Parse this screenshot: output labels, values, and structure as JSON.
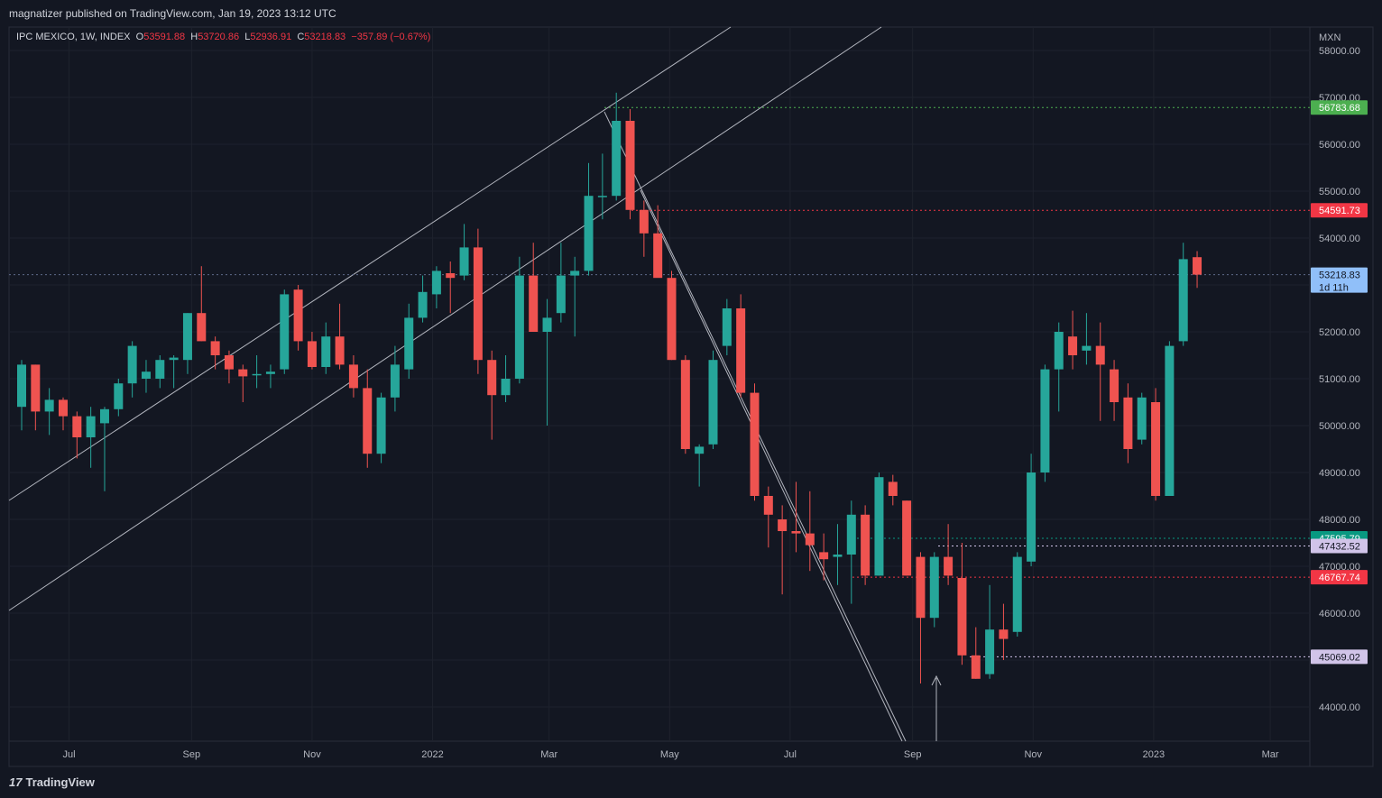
{
  "header": {
    "published": "magnatizer published on TradingView.com, Jan 19, 2023 13:12 UTC"
  },
  "legend": {
    "symbol": "IPC MEXICO, 1W, INDEX",
    "o_label": "O",
    "o_value": "53591.88",
    "h_label": "H",
    "h_value": "53720.86",
    "l_label": "L",
    "l_value": "52936.91",
    "c_label": "C",
    "c_value": "53218.83",
    "change": "−357.89 (−0.67%)"
  },
  "footer": {
    "brand": "TradingView",
    "brand_mark": "17"
  },
  "colors": {
    "up": "#26a69a",
    "down": "#ef5350",
    "background": "#131722",
    "grid": "#1e222d",
    "text": "#b2b5be",
    "trendline": "#b2b5be"
  },
  "chart_data": {
    "type": "candlestick",
    "currency": "MXN",
    "ylim": [
      43000,
      59000
    ],
    "y_ticks": [
      44000,
      45000,
      46000,
      47000,
      48000,
      49000,
      50000,
      51000,
      52000,
      53000,
      54000,
      55000,
      56000,
      57000,
      58000
    ],
    "y_tick_labels": [
      "44000.00",
      "45000.00",
      "46000.00",
      "47000.00",
      "48000.00",
      "49000.00",
      "50000.00",
      "51000.00",
      "52000.00",
      "53000.00",
      "54000.00",
      "55000.00",
      "56000.00",
      "57000.00",
      "58000.00"
    ],
    "x_ticks": [
      {
        "label": "Jul",
        "date": "2021-07-01"
      },
      {
        "label": "Sep",
        "date": "2021-09-01"
      },
      {
        "label": "Nov",
        "date": "2021-11-01"
      },
      {
        "label": "2022",
        "date": "2022-01-01"
      },
      {
        "label": "Mar",
        "date": "2022-03-01"
      },
      {
        "label": "May",
        "date": "2022-05-01"
      },
      {
        "label": "Jul",
        "date": "2022-07-01"
      },
      {
        "label": "Sep",
        "date": "2022-09-01"
      },
      {
        "label": "Nov",
        "date": "2022-11-01"
      },
      {
        "label": "2023",
        "date": "2023-01-01"
      },
      {
        "label": "Mar",
        "date": "2023-03-01"
      }
    ],
    "first_week": "2021-06-07",
    "last_date": "2023-03-20",
    "candles": [
      {
        "o": 50400,
        "h": 51400,
        "l": 49900,
        "c": 51300
      },
      {
        "o": 51300,
        "h": 51300,
        "l": 49900,
        "c": 50300
      },
      {
        "o": 50300,
        "h": 50800,
        "l": 49800,
        "c": 50550
      },
      {
        "o": 50550,
        "h": 50600,
        "l": 49900,
        "c": 50200
      },
      {
        "o": 50200,
        "h": 50300,
        "l": 49300,
        "c": 49750
      },
      {
        "o": 49750,
        "h": 50400,
        "l": 49100,
        "c": 50200
      },
      {
        "o": 50050,
        "h": 50400,
        "l": 48600,
        "c": 50350
      },
      {
        "o": 50350,
        "h": 51000,
        "l": 50200,
        "c": 50900
      },
      {
        "o": 50900,
        "h": 51800,
        "l": 50600,
        "c": 51700
      },
      {
        "o": 51000,
        "h": 51400,
        "l": 50700,
        "c": 51150
      },
      {
        "o": 51000,
        "h": 51500,
        "l": 50800,
        "c": 51400
      },
      {
        "o": 51400,
        "h": 51500,
        "l": 50800,
        "c": 51450
      },
      {
        "o": 51400,
        "h": 52400,
        "l": 51100,
        "c": 52400
      },
      {
        "o": 52400,
        "h": 53400,
        "l": 51800,
        "c": 51800
      },
      {
        "o": 51800,
        "h": 51900,
        "l": 51200,
        "c": 51500
      },
      {
        "o": 51500,
        "h": 51600,
        "l": 50900,
        "c": 51200
      },
      {
        "o": 51200,
        "h": 51300,
        "l": 50500,
        "c": 51050
      },
      {
        "o": 51100,
        "h": 51500,
        "l": 50800,
        "c": 51100
      },
      {
        "o": 51100,
        "h": 51300,
        "l": 50800,
        "c": 51150
      },
      {
        "o": 51200,
        "h": 52900,
        "l": 51100,
        "c": 52800
      },
      {
        "o": 52900,
        "h": 53000,
        "l": 51600,
        "c": 51800
      },
      {
        "o": 51800,
        "h": 52000,
        "l": 51200,
        "c": 51250
      },
      {
        "o": 51250,
        "h": 52200,
        "l": 51100,
        "c": 51900
      },
      {
        "o": 51900,
        "h": 52600,
        "l": 51200,
        "c": 51300
      },
      {
        "o": 51300,
        "h": 51500,
        "l": 50600,
        "c": 50800
      },
      {
        "o": 50800,
        "h": 51200,
        "l": 49100,
        "c": 49400
      },
      {
        "o": 49400,
        "h": 50700,
        "l": 49200,
        "c": 50600
      },
      {
        "o": 50600,
        "h": 51700,
        "l": 50300,
        "c": 51300
      },
      {
        "o": 51200,
        "h": 52600,
        "l": 51000,
        "c": 52300
      },
      {
        "o": 52300,
        "h": 53200,
        "l": 52200,
        "c": 52850
      },
      {
        "o": 52800,
        "h": 53400,
        "l": 52500,
        "c": 53300
      },
      {
        "o": 53250,
        "h": 53500,
        "l": 52400,
        "c": 53150
      },
      {
        "o": 53200,
        "h": 54300,
        "l": 53100,
        "c": 53800
      },
      {
        "o": 53800,
        "h": 54200,
        "l": 51100,
        "c": 51400
      },
      {
        "o": 51400,
        "h": 51600,
        "l": 49700,
        "c": 50650
      },
      {
        "o": 50650,
        "h": 51500,
        "l": 50500,
        "c": 51000
      },
      {
        "o": 51000,
        "h": 53600,
        "l": 50900,
        "c": 53200
      },
      {
        "o": 53200,
        "h": 53900,
        "l": 52000,
        "c": 52000
      },
      {
        "o": 52000,
        "h": 52700,
        "l": 50000,
        "c": 52300
      },
      {
        "o": 52400,
        "h": 53900,
        "l": 52200,
        "c": 53200
      },
      {
        "o": 53200,
        "h": 53600,
        "l": 51900,
        "c": 53300
      },
      {
        "o": 53300,
        "h": 55600,
        "l": 53200,
        "c": 54900
      },
      {
        "o": 54900,
        "h": 55800,
        "l": 54400,
        "c": 54900
      },
      {
        "o": 54900,
        "h": 57100,
        "l": 54800,
        "c": 56500
      },
      {
        "o": 56500,
        "h": 56750,
        "l": 54400,
        "c": 54600
      },
      {
        "o": 54600,
        "h": 54800,
        "l": 53600,
        "c": 54100
      },
      {
        "o": 54100,
        "h": 54700,
        "l": 53200,
        "c": 53150
      },
      {
        "o": 53150,
        "h": 53300,
        "l": 51400,
        "c": 51400
      },
      {
        "o": 51400,
        "h": 51500,
        "l": 49400,
        "c": 49500
      },
      {
        "o": 49400,
        "h": 49600,
        "l": 48700,
        "c": 49550
      },
      {
        "o": 49600,
        "h": 51600,
        "l": 49500,
        "c": 51400
      },
      {
        "o": 51700,
        "h": 52700,
        "l": 51500,
        "c": 52500
      },
      {
        "o": 52500,
        "h": 52800,
        "l": 50600,
        "c": 50700
      },
      {
        "o": 50700,
        "h": 50900,
        "l": 48400,
        "c": 48500
      },
      {
        "o": 48500,
        "h": 48700,
        "l": 47400,
        "c": 48100
      },
      {
        "o": 48000,
        "h": 48300,
        "l": 46400,
        "c": 47750
      },
      {
        "o": 47750,
        "h": 48800,
        "l": 47300,
        "c": 47700
      },
      {
        "o": 47700,
        "h": 48600,
        "l": 46900,
        "c": 47450
      },
      {
        "o": 47300,
        "h": 47700,
        "l": 46700,
        "c": 47150
      },
      {
        "o": 47200,
        "h": 47900,
        "l": 46600,
        "c": 47250
      },
      {
        "o": 47250,
        "h": 48400,
        "l": 46200,
        "c": 48100
      },
      {
        "o": 48100,
        "h": 48300,
        "l": 46600,
        "c": 46800
      },
      {
        "o": 46800,
        "h": 49000,
        "l": 46800,
        "c": 48900
      },
      {
        "o": 48800,
        "h": 48950,
        "l": 48300,
        "c": 48500
      },
      {
        "o": 48400,
        "h": 48400,
        "l": 46800,
        "c": 46800
      },
      {
        "o": 47200,
        "h": 47300,
        "l": 44500,
        "c": 45900
      },
      {
        "o": 45900,
        "h": 47300,
        "l": 45700,
        "c": 47200
      },
      {
        "o": 47200,
        "h": 47900,
        "l": 46600,
        "c": 46800
      },
      {
        "o": 46750,
        "h": 47500,
        "l": 44900,
        "c": 45100
      },
      {
        "o": 45100,
        "h": 45700,
        "l": 44600,
        "c": 44600
      },
      {
        "o": 44700,
        "h": 46600,
        "l": 44600,
        "c": 45650
      },
      {
        "o": 45650,
        "h": 46200,
        "l": 45000,
        "c": 45450
      },
      {
        "o": 45600,
        "h": 47300,
        "l": 45500,
        "c": 47200
      },
      {
        "o": 47100,
        "h": 49400,
        "l": 47000,
        "c": 49000
      },
      {
        "o": 49000,
        "h": 51300,
        "l": 48800,
        "c": 51200
      },
      {
        "o": 51200,
        "h": 52200,
        "l": 50300,
        "c": 52000
      },
      {
        "o": 51900,
        "h": 52450,
        "l": 51200,
        "c": 51500
      },
      {
        "o": 51600,
        "h": 52400,
        "l": 51300,
        "c": 51700
      },
      {
        "o": 51700,
        "h": 52200,
        "l": 50100,
        "c": 51300
      },
      {
        "o": 51200,
        "h": 51400,
        "l": 50100,
        "c": 50500
      },
      {
        "o": 50600,
        "h": 50900,
        "l": 49200,
        "c": 49500
      },
      {
        "o": 49700,
        "h": 50700,
        "l": 49600,
        "c": 50600
      },
      {
        "o": 50500,
        "h": 50800,
        "l": 48400,
        "c": 48500
      },
      {
        "o": 48500,
        "h": 51800,
        "l": 48500,
        "c": 51700
      },
      {
        "o": 51800,
        "h": 53900,
        "l": 51700,
        "c": 53550
      },
      {
        "o": 53592,
        "h": 53721,
        "l": 52937,
        "c": 53219
      }
    ],
    "price_labels": [
      {
        "value": "56783.68",
        "price": 56783.68,
        "color": "#4caf50"
      },
      {
        "value": "54591.73",
        "price": 54591.73,
        "color": "#f23645"
      },
      {
        "value": "53218.83",
        "price": 53218.83,
        "color": "#90bff9",
        "sub": "1d 11h"
      },
      {
        "value": "47595.79",
        "price": 47595.79,
        "color": "#089981"
      },
      {
        "value": "47432.52",
        "price": 47432.52,
        "color": "#d1c4e9"
      },
      {
        "value": "46767.74",
        "price": 46767.74,
        "color": "#f23645"
      },
      {
        "value": "45069.02",
        "price": 45069.02,
        "color": "#d1c4e9"
      }
    ]
  }
}
